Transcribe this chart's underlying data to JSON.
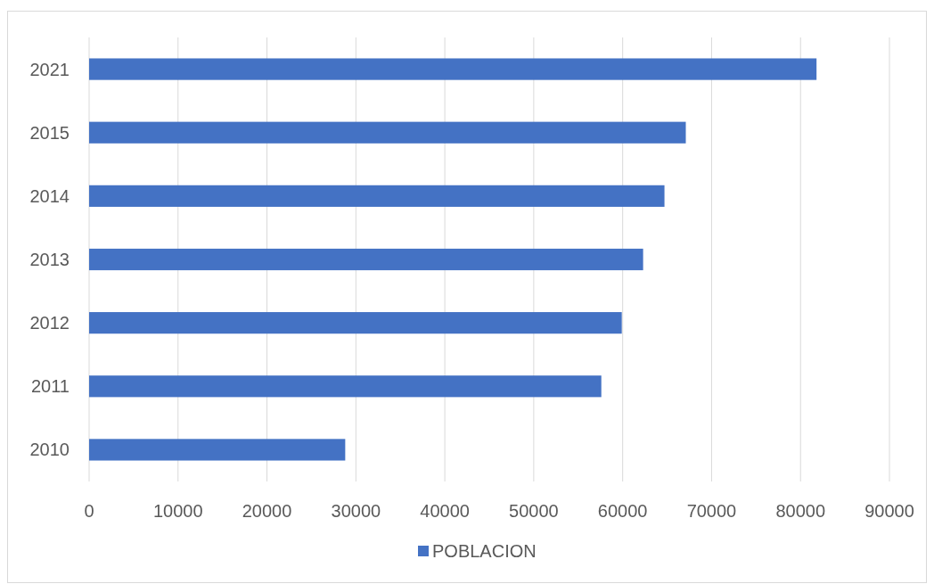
{
  "chart_data": {
    "type": "bar",
    "orientation": "horizontal",
    "categories": [
      "2021",
      "2015",
      "2014",
      "2013",
      "2012",
      "2011",
      "2010"
    ],
    "series": [
      {
        "name": "POBLACION",
        "color": "#4472c4",
        "values": [
          81800,
          67100,
          64700,
          62300,
          59900,
          57600,
          28800
        ]
      }
    ],
    "xlim": [
      0,
      90000
    ],
    "xticks": [
      0,
      10000,
      20000,
      30000,
      40000,
      50000,
      60000,
      70000,
      80000,
      90000
    ],
    "grid": "x",
    "legend": "bottom"
  }
}
